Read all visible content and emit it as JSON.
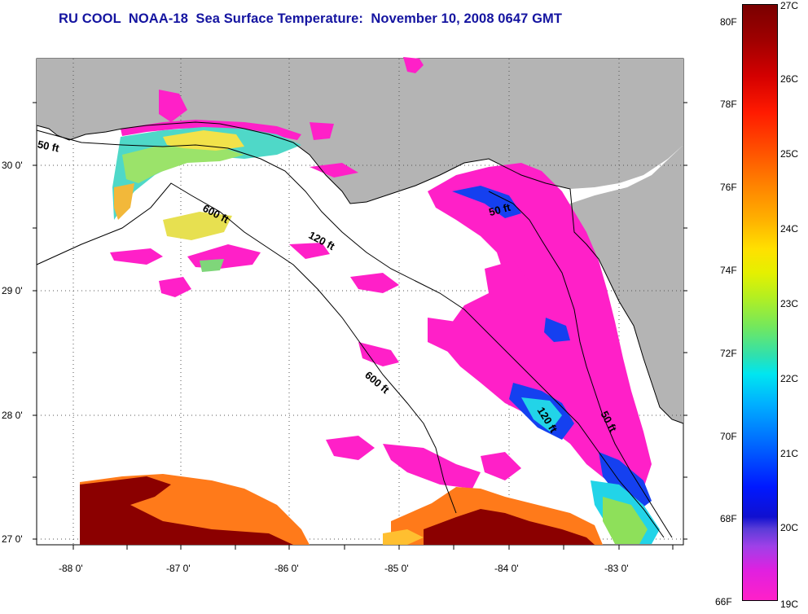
{
  "title": "RU COOL  NOAA-18  Sea Surface Temperature:  November 10, 2008 0647 GMT",
  "lat_labels": [
    "30 0'",
    "29 0'",
    "28 0'",
    "27 0'"
  ],
  "lon_labels": [
    "-88 0'",
    "-87 0'",
    "-86 0'",
    "-85 0'",
    "-84 0'",
    "-83 0'"
  ],
  "contour_labels": [
    "50 ft",
    "600 ft",
    "120 ft",
    "50 ft",
    "600 ft",
    "120 ft",
    "50 ft"
  ],
  "colorbar": {
    "fahrenheit": [
      "80F",
      "78F",
      "76F",
      "74F",
      "72F",
      "70F",
      "68F",
      "66F"
    ],
    "celsius": [
      "27C",
      "26C",
      "25C",
      "24C",
      "23C",
      "22C",
      "21C",
      "20C",
      "19C"
    ]
  },
  "colors": {
    "land": "#b4b4b4",
    "water": "#ffffff",
    "title": "#1414a0",
    "sst_cold": "#ff20c8",
    "sst_warm": "#8b0000"
  }
}
